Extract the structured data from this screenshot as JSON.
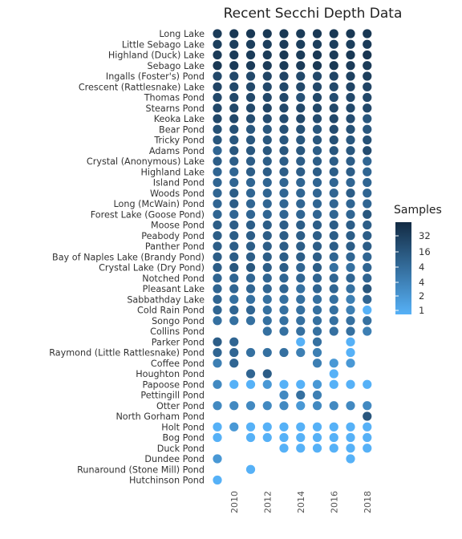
{
  "chart_data": {
    "type": "scatter",
    "title": "Recent Secchi Depth Data",
    "xlabel": "",
    "ylabel": "",
    "x_ticks": [
      2010,
      2012,
      2014,
      2016,
      2018
    ],
    "years": [
      2009,
      2010,
      2011,
      2012,
      2013,
      2014,
      2015,
      2016,
      2017,
      2018
    ],
    "legend": {
      "title": "Samples",
      "labels": [
        "32",
        "16",
        "4",
        "4",
        "2",
        "1"
      ],
      "placement": "right",
      "color_low": "#56b1f7",
      "color_high": "#132b43"
    },
    "lakes": [
      {
        "name": "Long Lake",
        "samples": [
          26,
          28,
          28,
          28,
          28,
          26,
          28,
          28,
          28,
          28
        ]
      },
      {
        "name": "Little Sebago Lake",
        "samples": [
          24,
          24,
          24,
          24,
          26,
          24,
          24,
          24,
          24,
          26
        ]
      },
      {
        "name": "Highland (Duck) Lake",
        "samples": [
          26,
          26,
          26,
          26,
          28,
          26,
          28,
          26,
          28,
          30
        ]
      },
      {
        "name": "Sebago Lake",
        "samples": [
          28,
          26,
          26,
          26,
          26,
          26,
          28,
          28,
          26,
          26
        ]
      },
      {
        "name": "Ingalls (Foster's) Pond",
        "samples": [
          18,
          18,
          18,
          20,
          20,
          18,
          18,
          20,
          22,
          24
        ]
      },
      {
        "name": "Crescent (Rattlesnake) Lake",
        "samples": [
          20,
          18,
          18,
          18,
          18,
          18,
          18,
          18,
          20,
          20
        ]
      },
      {
        "name": "Thomas Pond",
        "samples": [
          18,
          18,
          18,
          18,
          18,
          14,
          18,
          16,
          18,
          18
        ]
      },
      {
        "name": "Stearns Pond",
        "samples": [
          18,
          18,
          18,
          20,
          18,
          18,
          18,
          18,
          18,
          18
        ]
      },
      {
        "name": "Keoka Lake",
        "samples": [
          18,
          18,
          16,
          16,
          16,
          18,
          16,
          18,
          16,
          12
        ]
      },
      {
        "name": "Bear Pond",
        "samples": [
          14,
          14,
          12,
          12,
          14,
          14,
          12,
          16,
          14,
          12
        ]
      },
      {
        "name": "Tricky Pond",
        "samples": [
          12,
          12,
          12,
          12,
          12,
          12,
          12,
          14,
          12,
          14
        ]
      },
      {
        "name": "Adams Pond",
        "samples": [
          8,
          12,
          12,
          12,
          12,
          12,
          10,
          12,
          12,
          16
        ]
      },
      {
        "name": "Crystal (Anonymous) Lake",
        "samples": [
          10,
          10,
          10,
          10,
          10,
          10,
          10,
          10,
          10,
          8
        ]
      },
      {
        "name": "Highland Lake",
        "samples": [
          8,
          8,
          10,
          10,
          10,
          10,
          10,
          10,
          10,
          8
        ]
      },
      {
        "name": "Island Pond",
        "samples": [
          8,
          8,
          8,
          8,
          8,
          8,
          8,
          8,
          8,
          8
        ]
      },
      {
        "name": "Woods Pond",
        "samples": [
          8,
          10,
          8,
          8,
          8,
          8,
          8,
          8,
          10,
          8
        ]
      },
      {
        "name": "Long (McWain) Pond",
        "samples": [
          8,
          10,
          8,
          8,
          8,
          8,
          8,
          8,
          8,
          8
        ]
      },
      {
        "name": "Forest Lake (Goose Pond)",
        "samples": [
          8,
          8,
          8,
          8,
          8,
          8,
          8,
          8,
          8,
          12
        ]
      },
      {
        "name": "Moose Pond",
        "samples": [
          10,
          10,
          10,
          10,
          10,
          10,
          10,
          10,
          10,
          10
        ]
      },
      {
        "name": "Peabody Pond",
        "samples": [
          10,
          10,
          10,
          10,
          10,
          10,
          10,
          10,
          10,
          10
        ]
      },
      {
        "name": "Panther Pond",
        "samples": [
          10,
          10,
          10,
          10,
          10,
          10,
          10,
          10,
          10,
          10
        ]
      },
      {
        "name": "Bay of Naples Lake (Brandy Pond)",
        "samples": [
          10,
          10,
          10,
          10,
          10,
          10,
          10,
          8,
          8,
          8
        ]
      },
      {
        "name": "Crystal Lake (Dry Pond)",
        "samples": [
          10,
          12,
          12,
          10,
          10,
          8,
          10,
          6,
          6,
          8
        ]
      },
      {
        "name": "Notched Pond",
        "samples": [
          8,
          8,
          8,
          8,
          8,
          8,
          8,
          8,
          8,
          8
        ]
      },
      {
        "name": "Pleasant Lake",
        "samples": [
          8,
          8,
          8,
          8,
          8,
          6,
          8,
          8,
          6,
          12
        ]
      },
      {
        "name": "Sabbathday Lake",
        "samples": [
          8,
          6,
          6,
          6,
          6,
          6,
          6,
          6,
          4,
          8
        ]
      },
      {
        "name": "Cold Rain Pond",
        "samples": [
          8,
          8,
          8,
          6,
          6,
          6,
          6,
          6,
          4,
          1
        ]
      },
      {
        "name": "Songo Pond",
        "samples": [
          6,
          6,
          6,
          6,
          6,
          6,
          6,
          6,
          6,
          6
        ]
      },
      {
        "name": "Collins Pond",
        "samples": [
          null,
          null,
          null,
          6,
          6,
          6,
          6,
          6,
          6,
          4
        ]
      },
      {
        "name": "Parker Pond",
        "samples": [
          10,
          8,
          null,
          null,
          null,
          1,
          6,
          null,
          1,
          null
        ]
      },
      {
        "name": "Raymond (Little Rattlesnake) Pond",
        "samples": [
          8,
          8,
          6,
          6,
          6,
          4,
          4,
          null,
          1,
          null
        ]
      },
      {
        "name": "Coffee Pond",
        "samples": [
          4,
          8,
          null,
          null,
          null,
          null,
          4,
          2,
          2,
          null
        ]
      },
      {
        "name": "Houghton Pond",
        "samples": [
          null,
          null,
          8,
          10,
          null,
          null,
          null,
          1,
          null,
          null
        ]
      },
      {
        "name": "Papoose Pond",
        "samples": [
          3,
          1,
          1,
          2,
          1,
          1,
          2,
          1,
          1,
          1
        ]
      },
      {
        "name": "Pettingill Pond",
        "samples": [
          null,
          null,
          null,
          null,
          3,
          6,
          4,
          null,
          null,
          null
        ]
      },
      {
        "name": "Otter Pond",
        "samples": [
          3,
          3,
          3,
          3,
          3,
          2,
          3,
          3,
          3,
          3
        ]
      },
      {
        "name": "North Gorham Pond",
        "samples": [
          null,
          null,
          null,
          null,
          null,
          null,
          null,
          null,
          null,
          12
        ]
      },
      {
        "name": "Holt Pond",
        "samples": [
          1,
          2,
          1,
          1,
          1,
          1,
          1,
          1,
          1,
          1
        ]
      },
      {
        "name": "Bog Pond",
        "samples": [
          1,
          null,
          1,
          1,
          1,
          1,
          1,
          1,
          1,
          1
        ]
      },
      {
        "name": "Duck Pond",
        "samples": [
          null,
          null,
          null,
          null,
          1,
          1,
          1,
          1,
          1,
          1
        ]
      },
      {
        "name": "Dundee Pond",
        "samples": [
          2,
          null,
          null,
          null,
          null,
          null,
          null,
          null,
          1,
          null
        ]
      },
      {
        "name": "Runaround (Stone Mill) Pond",
        "samples": [
          null,
          null,
          1,
          null,
          null,
          null,
          null,
          null,
          null,
          null
        ]
      },
      {
        "name": "Hutchinson Pond",
        "samples": [
          1,
          null,
          null,
          null,
          null,
          null,
          null,
          null,
          null,
          null
        ]
      }
    ]
  }
}
